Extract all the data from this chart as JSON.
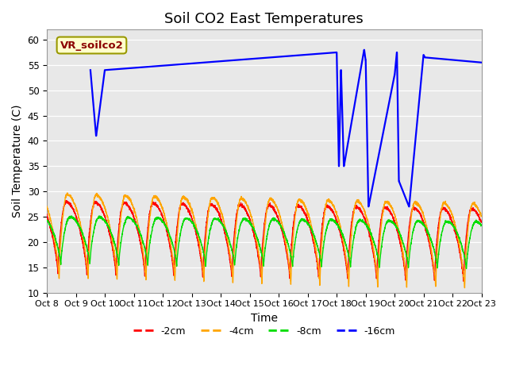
{
  "title": "Soil CO2 East Temperatures",
  "xlabel": "Time",
  "ylabel": "Soil Temperature (C)",
  "ylim": [
    10,
    62
  ],
  "yticks": [
    10,
    15,
    20,
    25,
    30,
    35,
    40,
    45,
    50,
    55,
    60
  ],
  "x_tick_labels": [
    "Oct 8",
    "Oct 9",
    "Oct 10",
    "Oct 11",
    "Oct 12",
    "Oct 13",
    "Oct 14",
    "Oct 15",
    "Oct 16",
    "Oct 17",
    "Oct 18",
    "Oct 19",
    "Oct 20",
    "Oct 21",
    "Oct 22",
    "Oct 23"
  ],
  "legend_label": "VR_soilco2",
  "line_colors": {
    "2cm": "#ff0000",
    "4cm": "#ffa500",
    "8cm": "#00dd00",
    "16cm": "#0000ff"
  },
  "line_labels": [
    "-2cm",
    "-4cm",
    "-8cm",
    "-16cm"
  ],
  "bg_color": "#e8e8e8",
  "title_fontsize": 13,
  "axis_fontsize": 10,
  "tick_fontsize": 8.5
}
